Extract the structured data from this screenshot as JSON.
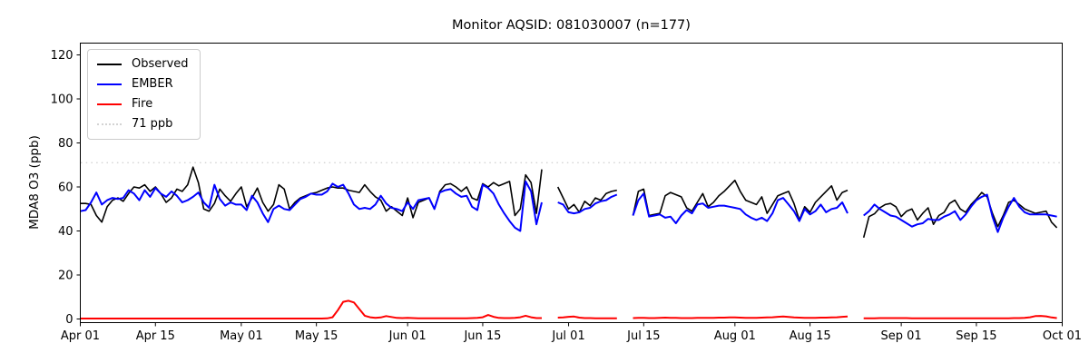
{
  "chart_data": {
    "type": "line",
    "title": "Monitor AQSID: 081030007 (n=177)",
    "xlabel": "",
    "ylabel": "MDA8 O3 (ppb)",
    "ylim": [
      0,
      120
    ],
    "yticks": [
      0,
      20,
      40,
      60,
      80,
      100,
      120
    ],
    "x_frequency": "daily",
    "x_total_days": 183,
    "xticks": [
      {
        "label": "Apr 01",
        "day": 0
      },
      {
        "label": "Apr 15",
        "day": 14
      },
      {
        "label": "May 01",
        "day": 30
      },
      {
        "label": "May 15",
        "day": 44
      },
      {
        "label": "Jun 01",
        "day": 61
      },
      {
        "label": "Jun 15",
        "day": 75
      },
      {
        "label": "Jul 01",
        "day": 91
      },
      {
        "label": "Jul 15",
        "day": 105
      },
      {
        "label": "Aug 01",
        "day": 122
      },
      {
        "label": "Aug 15",
        "day": 136
      },
      {
        "label": "Sep 01",
        "day": 153
      },
      {
        "label": "Sep 15",
        "day": 167
      },
      {
        "label": "Oct 01",
        "day": 183
      }
    ],
    "grid": false,
    "legend_position": "upper left",
    "threshold": {
      "label": "71 ppb",
      "value": 71,
      "color": "#d3d3d3",
      "linestyle": "dotted"
    },
    "series": [
      {
        "name": "Observed",
        "color": "#000000",
        "values": [
          52.5,
          52.5,
          52,
          47,
          44,
          51,
          54,
          55,
          53.5,
          57,
          60,
          59.5,
          61,
          58,
          60,
          57,
          53,
          55,
          59,
          58,
          61,
          69,
          62,
          50,
          49,
          52.5,
          59,
          56,
          53.5,
          57,
          60,
          51,
          55,
          59.5,
          53,
          49,
          52,
          61,
          59,
          50,
          53,
          55,
          56,
          57,
          57.5,
          58.5,
          59.5,
          60,
          59.5,
          59.5,
          58.5,
          58,
          57.5,
          61,
          58,
          55.5,
          54,
          49,
          51,
          49,
          47,
          55,
          46,
          53,
          54,
          55,
          50,
          58,
          61,
          61.5,
          60,
          58,
          60,
          55,
          54,
          61.5,
          60,
          62,
          60.5,
          61.5,
          62.5,
          47,
          50,
          65.5,
          62,
          48,
          68,
          null,
          null,
          60,
          55,
          50,
          52,
          48.5,
          53.5,
          51.5,
          55,
          54,
          57,
          58,
          58.5,
          null,
          null,
          47,
          58,
          59,
          47,
          47.5,
          48,
          56,
          57.5,
          56.5,
          55.5,
          50.5,
          49,
          53,
          57,
          51,
          53,
          56,
          58,
          60.5,
          63,
          58,
          54,
          53,
          52,
          55.5,
          48,
          52,
          56,
          57,
          58,
          52.5,
          45,
          51,
          48.5,
          53,
          55.5,
          58,
          60.5,
          54,
          57.5,
          58.5,
          null,
          null,
          37,
          46.5,
          47.8,
          50.5,
          52,
          52.5,
          51,
          46.5,
          49,
          50,
          45,
          48,
          50.5,
          43,
          47,
          48.5,
          52.5,
          54,
          50,
          48.5,
          52,
          54.5,
          57.5,
          55.5,
          48,
          42,
          47,
          53,
          54,
          52,
          50,
          49,
          48,
          48.5,
          49,
          44,
          41.5
        ]
      },
      {
        "name": "EMBER",
        "color": "#0000ff",
        "values": [
          49,
          49.5,
          53,
          57.5,
          52,
          54,
          55,
          54.5,
          55,
          58.5,
          57,
          54,
          58.5,
          55.5,
          59.5,
          57,
          55.5,
          58,
          56,
          53,
          54,
          55.5,
          57.5,
          53,
          50.5,
          61,
          54.5,
          51.5,
          53,
          52,
          52,
          49.5,
          56,
          53,
          48,
          44,
          50,
          51.5,
          50,
          49.5,
          52,
          54.5,
          55.5,
          57,
          56.5,
          56.5,
          58,
          61.5,
          60,
          61,
          57,
          52,
          50,
          50.5,
          50,
          52,
          56,
          52.5,
          50.5,
          50,
          49,
          53,
          50,
          54,
          54.5,
          55,
          50,
          57.5,
          58.5,
          59,
          57,
          55.5,
          56,
          51,
          49.5,
          61,
          59.5,
          57,
          52,
          48,
          44.5,
          41.5,
          40,
          62.5,
          58,
          43,
          53,
          null,
          null,
          53,
          52,
          48.5,
          48,
          48.5,
          50,
          50.5,
          52.5,
          53.5,
          54,
          55.5,
          56.5,
          null,
          null,
          47,
          54,
          57,
          46.5,
          47,
          47.5,
          46,
          46.5,
          43.5,
          47,
          49.5,
          48,
          52,
          52.5,
          50.5,
          51,
          51.5,
          51.5,
          51,
          50.5,
          50,
          47.5,
          46,
          45,
          46,
          44.5,
          48,
          54,
          55,
          52,
          49,
          44.5,
          50,
          47.5,
          49,
          52,
          48.5,
          50,
          50.5,
          53,
          48,
          null,
          null,
          47,
          49,
          52,
          50,
          48.5,
          47,
          46.5,
          45,
          43.5,
          42,
          43,
          43.5,
          45.5,
          45,
          45,
          46.5,
          47.5,
          49,
          45,
          47.5,
          51,
          54,
          55.5,
          56.5,
          46.5,
          39.5,
          46,
          51,
          55,
          51,
          48.5,
          47.5,
          47.5,
          47.5,
          47.5,
          47,
          46.5
        ]
      },
      {
        "name": "Fire",
        "color": "#ff0000",
        "values": [
          0.2,
          0.2,
          0.2,
          0.2,
          0.2,
          0.2,
          0.2,
          0.2,
          0.2,
          0.2,
          0.2,
          0.2,
          0.2,
          0.2,
          0.2,
          0.2,
          0.2,
          0.2,
          0.2,
          0.2,
          0.2,
          0.2,
          0.2,
          0.2,
          0.2,
          0.2,
          0.2,
          0.2,
          0.2,
          0.2,
          0.2,
          0.2,
          0.2,
          0.2,
          0.2,
          0.2,
          0.2,
          0.2,
          0.2,
          0.2,
          0.2,
          0.2,
          0.2,
          0.2,
          0.2,
          0.2,
          0.3,
          0.8,
          4,
          7.8,
          8.3,
          7.5,
          4.5,
          1.5,
          0.8,
          0.5,
          0.7,
          1.3,
          0.9,
          0.5,
          0.4,
          0.5,
          0.4,
          0.3,
          0.3,
          0.3,
          0.3,
          0.3,
          0.3,
          0.3,
          0.3,
          0.3,
          0.3,
          0.4,
          0.5,
          0.8,
          1.8,
          1,
          0.5,
          0.4,
          0.4,
          0.5,
          0.8,
          1.5,
          0.8,
          0.4,
          0.4,
          null,
          null,
          0.6,
          0.7,
          1,
          1.1,
          0.6,
          0.4,
          0.4,
          0.3,
          0.3,
          0.3,
          0.3,
          0.3,
          null,
          null,
          0.4,
          0.5,
          0.5,
          0.4,
          0.4,
          0.5,
          0.6,
          0.5,
          0.5,
          0.4,
          0.4,
          0.4,
          0.5,
          0.5,
          0.5,
          0.5,
          0.6,
          0.6,
          0.7,
          0.7,
          0.6,
          0.5,
          0.5,
          0.5,
          0.6,
          0.7,
          0.8,
          1,
          1.1,
          0.9,
          0.7,
          0.6,
          0.5,
          0.5,
          0.5,
          0.6,
          0.6,
          0.7,
          0.8,
          1,
          1.1,
          null,
          null,
          0.3,
          0.3,
          0.3,
          0.4,
          0.4,
          0.4,
          0.4,
          0.4,
          0.4,
          0.3,
          0.3,
          0.3,
          0.3,
          0.3,
          0.3,
          0.3,
          0.3,
          0.3,
          0.3,
          0.3,
          0.3,
          0.3,
          0.3,
          0.3,
          0.3,
          0.3,
          0.3,
          0.3,
          0.4,
          0.4,
          0.5,
          0.8,
          1.3,
          1.4,
          1.2,
          0.7,
          0.4
        ]
      }
    ]
  }
}
